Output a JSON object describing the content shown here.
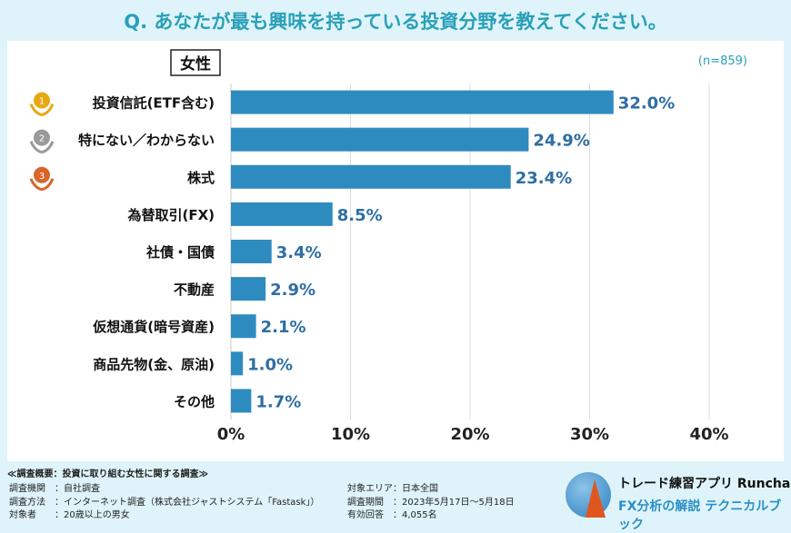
{
  "title": "Q. あなたが最も興味を持っている投資分野を教えてください。",
  "chart_data": {
    "type": "bar",
    "orientation": "horizontal",
    "segment_label": "女性",
    "sample_size": "(n=859)",
    "categories": [
      "投資信託(ETF含む)",
      "特にない／わからない",
      "株式",
      "為替取引(FX)",
      "社債・国債",
      "不動産",
      "仮想通貨(暗号資産)",
      "商品先物(金、原油)",
      "その他"
    ],
    "values": [
      32.0,
      24.9,
      23.4,
      8.5,
      3.4,
      2.9,
      2.1,
      1.0,
      1.7
    ],
    "value_labels": [
      "32.0%",
      "24.9%",
      "23.4%",
      "8.5%",
      "3.4%",
      "2.9%",
      "2.1%",
      "1.0%",
      "1.7%"
    ],
    "rank_badges": [
      "1",
      "2",
      "3"
    ],
    "xlim": [
      0,
      40
    ],
    "x_ticks": [
      "0%",
      "10%",
      "20%",
      "30%",
      "40%"
    ],
    "grid": "vertical",
    "bar_color": "#2e8bbf",
    "label_color": "#2e6ea3"
  },
  "footer": {
    "heading": "≪調査概要：投資に取り組む女性に関する調査≫",
    "left": [
      "調査機関　：自社調査",
      "調査方法　：インターネット調査（株式会社ジャストシステム「Fastask」）",
      "対象者　　：20歳以上の男女"
    ],
    "right": [
      "対象エリア：日本全国",
      "調査期間　：2023年5月17日～5月18日",
      "有効回答　：4,055名"
    ],
    "brand1": "トレード練習アプリ Runcha",
    "brand2": "FX分析の解説 テクニカルブック"
  }
}
